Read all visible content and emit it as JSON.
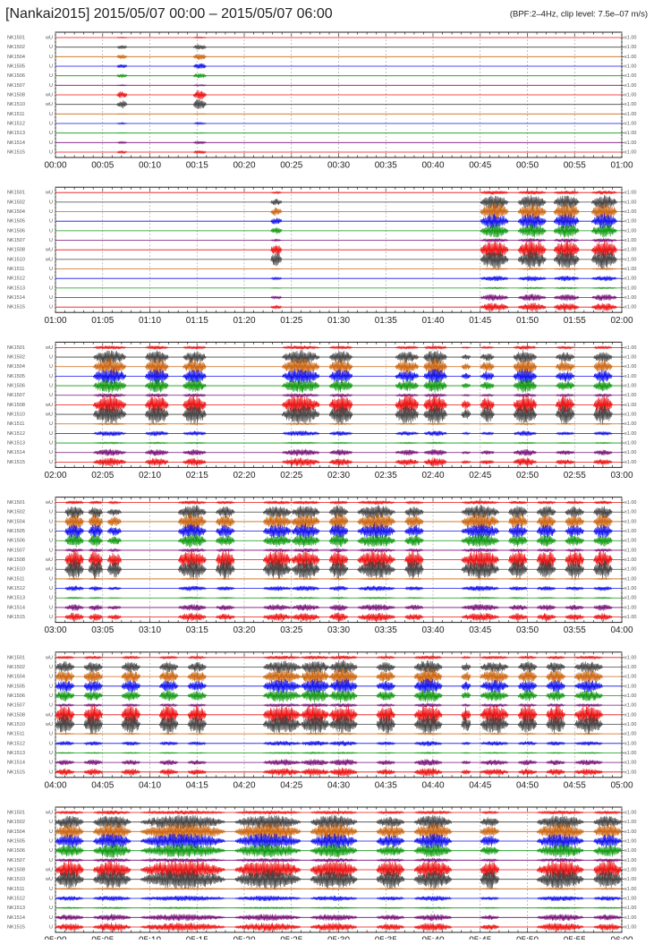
{
  "chart_data": {
    "type": "seismogram",
    "title": "[Nankai2015]  2015/05/07 00:00 – 2015/05/07 06:00",
    "subtitle": "(BPF:2–4Hz,  clip level: 7.5e–07 m/s)",
    "stations": [
      {
        "name": "NK1501",
        "component": "wU",
        "scale": "x1.00",
        "color": "#ee1111",
        "relative_amplitude": 0.25
      },
      {
        "name": "NK1502",
        "component": "U",
        "scale": "x1.00",
        "color": "#444444",
        "relative_amplitude": 0.9
      },
      {
        "name": "NK1504",
        "component": "U",
        "scale": "x1.00",
        "color": "#cc6611",
        "relative_amplitude": 1.1
      },
      {
        "name": "NK1505",
        "component": "U",
        "scale": "x1.00",
        "color": "#1111ee",
        "relative_amplitude": 1.0
      },
      {
        "name": "NK1506",
        "component": "U",
        "scale": "x1.00",
        "color": "#119911",
        "relative_amplitude": 0.9
      },
      {
        "name": "NK1507",
        "component": "U",
        "scale": "x1.00",
        "color": "#771177",
        "relative_amplitude": 0.25
      },
      {
        "name": "NK1508",
        "component": "wU",
        "scale": "x1.00",
        "color": "#ee1111",
        "relative_amplitude": 1.6
      },
      {
        "name": "NK1510",
        "component": "wU",
        "scale": "x1.00",
        "color": "#444444",
        "relative_amplitude": 1.8
      },
      {
        "name": "NK1511",
        "component": "U",
        "scale": "x1.00",
        "color": "#cc6611",
        "relative_amplitude": 0.1
      },
      {
        "name": "NK1512",
        "component": "U",
        "scale": "x1.00",
        "color": "#1111ee",
        "relative_amplitude": 0.35
      },
      {
        "name": "NK1513",
        "component": "U",
        "scale": "x1.00",
        "color": "#119911",
        "relative_amplitude": 0.1
      },
      {
        "name": "NK1514",
        "component": "U",
        "scale": "x1.00",
        "color": "#771177",
        "relative_amplitude": 0.45
      },
      {
        "name": "NK1515",
        "component": "U",
        "scale": "x1.00",
        "color": "#ee1111",
        "relative_amplitude": 0.55
      }
    ],
    "panels": [
      {
        "xlim": [
          0,
          60
        ],
        "xticks": [
          {
            "value": 0,
            "label": "00:00"
          },
          {
            "value": 5,
            "label": "00:05"
          },
          {
            "value": 10,
            "label": "00:10"
          },
          {
            "value": 15,
            "label": "00:15"
          },
          {
            "value": 20,
            "label": "00:20"
          },
          {
            "value": 25,
            "label": "00:25"
          },
          {
            "value": 30,
            "label": "00:30"
          },
          {
            "value": 35,
            "label": "00:35"
          },
          {
            "value": 40,
            "label": "00:40"
          },
          {
            "value": 45,
            "label": "00:45"
          },
          {
            "value": 50,
            "label": "00:50"
          },
          {
            "value": 55,
            "label": "00:55"
          },
          {
            "value": 60,
            "label": "01:00"
          }
        ],
        "events": [
          {
            "start": 6.5,
            "end": 7.6,
            "amplitude": 0.3
          },
          {
            "start": 14.6,
            "end": 16,
            "amplitude": 0.4
          }
        ]
      },
      {
        "xlim": [
          0,
          60
        ],
        "xticks": [
          {
            "value": 0,
            "label": "01:00"
          },
          {
            "value": 5,
            "label": "01:05"
          },
          {
            "value": 10,
            "label": "01:10"
          },
          {
            "value": 15,
            "label": "01:15"
          },
          {
            "value": 20,
            "label": "01:20"
          },
          {
            "value": 25,
            "label": "01:25"
          },
          {
            "value": 30,
            "label": "01:30"
          },
          {
            "value": 35,
            "label": "01:35"
          },
          {
            "value": 40,
            "label": "01:40"
          },
          {
            "value": 45,
            "label": "01:45"
          },
          {
            "value": 50,
            "label": "01:50"
          },
          {
            "value": 55,
            "label": "01:55"
          },
          {
            "value": 60,
            "label": "02:00"
          }
        ],
        "events": [
          {
            "start": 22.8,
            "end": 24,
            "amplitude": 0.5
          },
          {
            "start": 45,
            "end": 48,
            "amplitude": 1
          },
          {
            "start": 49,
            "end": 52,
            "amplitude": 1
          },
          {
            "start": 52.8,
            "end": 55.5,
            "amplitude": 1
          },
          {
            "start": 56.8,
            "end": 59.5,
            "amplitude": 1
          }
        ]
      },
      {
        "xlim": [
          0,
          60
        ],
        "xticks": [
          {
            "value": 0,
            "label": "02:00"
          },
          {
            "value": 5,
            "label": "02:05"
          },
          {
            "value": 10,
            "label": "02:10"
          },
          {
            "value": 15,
            "label": "02:15"
          },
          {
            "value": 20,
            "label": "02:20"
          },
          {
            "value": 25,
            "label": "02:25"
          },
          {
            "value": 30,
            "label": "02:30"
          },
          {
            "value": 35,
            "label": "02:35"
          },
          {
            "value": 40,
            "label": "02:40"
          },
          {
            "value": 45,
            "label": "02:45"
          },
          {
            "value": 50,
            "label": "02:50"
          },
          {
            "value": 55,
            "label": "02:55"
          },
          {
            "value": 60,
            "label": "03:00"
          }
        ],
        "events": [
          {
            "start": 4,
            "end": 7.5,
            "amplitude": 1
          },
          {
            "start": 9.5,
            "end": 12,
            "amplitude": 1
          },
          {
            "start": 13.5,
            "end": 16,
            "amplitude": 0.9
          },
          {
            "start": 24,
            "end": 28,
            "amplitude": 1
          },
          {
            "start": 29,
            "end": 31.5,
            "amplitude": 0.9
          },
          {
            "start": 36,
            "end": 38.5,
            "amplitude": 0.8
          },
          {
            "start": 39,
            "end": 41.5,
            "amplitude": 1
          },
          {
            "start": 43,
            "end": 44,
            "amplitude": 0.4
          },
          {
            "start": 45,
            "end": 46.5,
            "amplitude": 0.6
          },
          {
            "start": 48.5,
            "end": 51,
            "amplitude": 1
          },
          {
            "start": 53,
            "end": 55,
            "amplitude": 0.7
          },
          {
            "start": 57,
            "end": 59,
            "amplitude": 0.8
          }
        ]
      },
      {
        "xlim": [
          0,
          60
        ],
        "xticks": [
          {
            "value": 0,
            "label": "03:00"
          },
          {
            "value": 5,
            "label": "03:05"
          },
          {
            "value": 10,
            "label": "03:10"
          },
          {
            "value": 15,
            "label": "03:15"
          },
          {
            "value": 20,
            "label": "03:20"
          },
          {
            "value": 25,
            "label": "03:25"
          },
          {
            "value": 30,
            "label": "03:30"
          },
          {
            "value": 35,
            "label": "03:35"
          },
          {
            "value": 40,
            "label": "03:40"
          },
          {
            "value": 45,
            "label": "03:45"
          },
          {
            "value": 50,
            "label": "03:50"
          },
          {
            "value": 55,
            "label": "03:55"
          },
          {
            "value": 60,
            "label": "04:00"
          }
        ],
        "events": [
          {
            "start": 1,
            "end": 3,
            "amplitude": 1
          },
          {
            "start": 3.5,
            "end": 5,
            "amplitude": 0.9
          },
          {
            "start": 5.5,
            "end": 7,
            "amplitude": 0.6
          },
          {
            "start": 13,
            "end": 16,
            "amplitude": 1
          },
          {
            "start": 17,
            "end": 19,
            "amplitude": 0.8
          },
          {
            "start": 22,
            "end": 25,
            "amplitude": 0.9
          },
          {
            "start": 25,
            "end": 28,
            "amplitude": 1
          },
          {
            "start": 29,
            "end": 31,
            "amplitude": 1
          },
          {
            "start": 32,
            "end": 36,
            "amplitude": 1
          },
          {
            "start": 37,
            "end": 39,
            "amplitude": 0.8
          },
          {
            "start": 43,
            "end": 47,
            "amplitude": 1
          },
          {
            "start": 48,
            "end": 50,
            "amplitude": 0.9
          },
          {
            "start": 51,
            "end": 53,
            "amplitude": 0.9
          },
          {
            "start": 54,
            "end": 56,
            "amplitude": 0.8
          },
          {
            "start": 57,
            "end": 59,
            "amplitude": 0.9
          }
        ]
      },
      {
        "xlim": [
          0,
          60
        ],
        "xticks": [
          {
            "value": 0,
            "label": "04:00"
          },
          {
            "value": 5,
            "label": "04:05"
          },
          {
            "value": 10,
            "label": "04:10"
          },
          {
            "value": 15,
            "label": "04:15"
          },
          {
            "value": 20,
            "label": "04:20"
          },
          {
            "value": 25,
            "label": "04:25"
          },
          {
            "value": 30,
            "label": "04:30"
          },
          {
            "value": 35,
            "label": "04:35"
          },
          {
            "value": 40,
            "label": "04:40"
          },
          {
            "value": 45,
            "label": "04:45"
          },
          {
            "value": 50,
            "label": "04:50"
          },
          {
            "value": 55,
            "label": "04:55"
          },
          {
            "value": 60,
            "label": "05:00"
          }
        ],
        "events": [
          {
            "start": 0,
            "end": 2,
            "amplitude": 0.8
          },
          {
            "start": 3,
            "end": 5,
            "amplitude": 0.8
          },
          {
            "start": 7,
            "end": 9,
            "amplitude": 0.8
          },
          {
            "start": 11,
            "end": 13,
            "amplitude": 0.8
          },
          {
            "start": 14,
            "end": 16,
            "amplitude": 0.7
          },
          {
            "start": 22,
            "end": 26,
            "amplitude": 0.9
          },
          {
            "start": 26,
            "end": 29,
            "amplitude": 1
          },
          {
            "start": 29,
            "end": 32,
            "amplitude": 1
          },
          {
            "start": 34,
            "end": 36,
            "amplitude": 0.7
          },
          {
            "start": 38,
            "end": 41,
            "amplitude": 1
          },
          {
            "start": 43,
            "end": 44,
            "amplitude": 0.6
          },
          {
            "start": 45,
            "end": 48,
            "amplitude": 0.8
          },
          {
            "start": 49,
            "end": 51,
            "amplitude": 0.8
          },
          {
            "start": 52,
            "end": 54,
            "amplitude": 0.8
          },
          {
            "start": 55,
            "end": 58,
            "amplitude": 0.8
          }
        ]
      },
      {
        "xlim": [
          0,
          60
        ],
        "xticks": [
          {
            "value": 0,
            "label": "05:00"
          },
          {
            "value": 5,
            "label": "05:05"
          },
          {
            "value": 10,
            "label": "05:10"
          },
          {
            "value": 15,
            "label": "05:15"
          },
          {
            "value": 20,
            "label": "05:20"
          },
          {
            "value": 25,
            "label": "05:25"
          },
          {
            "value": 30,
            "label": "05:30"
          },
          {
            "value": 35,
            "label": "05:35"
          },
          {
            "value": 40,
            "label": "05:40"
          },
          {
            "value": 45,
            "label": "05:45"
          },
          {
            "value": 50,
            "label": "05:50"
          },
          {
            "value": 55,
            "label": "05:55"
          },
          {
            "value": 60,
            "label": "06:00"
          }
        ],
        "events": [
          {
            "start": 0,
            "end": 3,
            "amplitude": 0.9
          },
          {
            "start": 4,
            "end": 8,
            "amplitude": 1
          },
          {
            "start": 9,
            "end": 18,
            "amplitude": 1
          },
          {
            "start": 19,
            "end": 26,
            "amplitude": 1
          },
          {
            "start": 27,
            "end": 32,
            "amplitude": 1
          },
          {
            "start": 34,
            "end": 37,
            "amplitude": 0.8
          },
          {
            "start": 38,
            "end": 42,
            "amplitude": 1
          },
          {
            "start": 45,
            "end": 47,
            "amplitude": 0.7
          },
          {
            "start": 51,
            "end": 56,
            "amplitude": 1
          },
          {
            "start": 57,
            "end": 60,
            "amplitude": 0.9
          }
        ]
      }
    ]
  }
}
